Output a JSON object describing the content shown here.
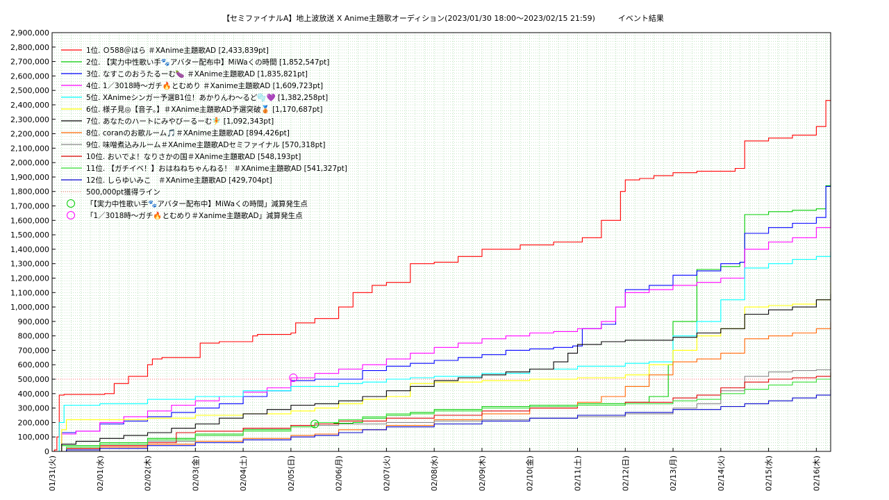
{
  "chart_data": {
    "type": "line",
    "title": "【セミファイナルA】地上波放送 X Anime主題歌オーディション(2023/01/30 18:00～2023/02/15 21:59)　　　イベント結果",
    "x_categories": [
      "01/31(火)",
      "02/01(水)",
      "02/02(木)",
      "02/03(金)",
      "02/04(土)",
      "02/05(日)",
      "02/06(月)",
      "02/07(火)",
      "02/08(水)",
      "02/09(木)",
      "02/10(金)",
      "02/11(土)",
      "02/12(日)",
      "02/13(月)",
      "02/14(火)",
      "02/15(水)",
      "02/16(木)"
    ],
    "xlim": [
      0,
      16.3
    ],
    "ylim": [
      0,
      2900000
    ],
    "yticks": [
      "0",
      "100,000",
      "200,000",
      "300,000",
      "400,000",
      "500,000",
      "600,000",
      "700,000",
      "800,000",
      "900,000",
      "1,000,000",
      "1,100,000",
      "1,200,000",
      "1,300,000",
      "1,400,000",
      "1,500,000",
      "1,600,000",
      "1,700,000",
      "1,800,000",
      "1,900,000",
      "2,000,000",
      "2,100,000",
      "2,200,000",
      "2,300,000",
      "2,400,000",
      "2,500,000",
      "2,600,000",
      "2,700,000",
      "2,800,000",
      "2,900,000"
    ],
    "grid": true,
    "legend_position": "top-left",
    "series": [
      {
        "name": "1位. Ｏ588＠はら ＃XAnime主題歌AD [2,433,839pt]",
        "color": "#ff0000",
        "x": [
          0,
          0.05,
          0.1,
          0.15,
          0.25,
          1.1,
          1.3,
          1.6,
          2.0,
          2.1,
          2.3,
          3.0,
          3.1,
          3.5,
          4.2,
          4.3,
          5.0,
          5.1,
          5.5,
          6.0,
          6.3,
          6.7,
          7.0,
          7.5,
          8.0,
          8.5,
          9.0,
          9.8,
          10.5,
          11.1,
          11.5,
          11.9,
          12.0,
          12.3,
          12.6,
          13.0,
          13.5,
          14.3,
          14.5,
          15.0,
          15.5,
          16.0,
          16.2,
          16.3
        ],
        "y": [
          0,
          10000,
          100000,
          390000,
          395000,
          400000,
          470000,
          520000,
          600000,
          640000,
          650000,
          650000,
          750000,
          760000,
          800000,
          810000,
          820000,
          890000,
          920000,
          1000000,
          1100000,
          1150000,
          1170000,
          1300000,
          1310000,
          1350000,
          1400000,
          1430000,
          1450000,
          1480000,
          1600000,
          1800000,
          1880000,
          1890000,
          1910000,
          1930000,
          1940000,
          1960000,
          2150000,
          2170000,
          2190000,
          2250000,
          2430000,
          2433839
        ]
      },
      {
        "name": "2位. 【実力中性歌い手🐾アバター配布中】MiWaくの時間 [1,852,547pt]",
        "color": "#00cc00",
        "x": [
          0,
          0.2,
          1.0,
          2.0,
          3.0,
          4.0,
          5.0,
          5.5,
          5.9,
          6.3,
          6.5,
          7.0,
          7.5,
          8.0,
          9.0,
          10.0,
          11.0,
          12.0,
          12.5,
          12.9,
          13.0,
          13.5,
          14.0,
          14.4,
          14.5,
          15.0,
          15.5,
          16.0,
          16.2,
          16.3
        ],
        "y": [
          0,
          40000,
          60000,
          90000,
          120000,
          150000,
          180000,
          190000,
          195000,
          200000,
          230000,
          250000,
          270000,
          290000,
          310000,
          320000,
          330000,
          340000,
          380000,
          600000,
          900000,
          1260000,
          1280000,
          1310000,
          1640000,
          1660000,
          1670000,
          1680000,
          1840000,
          1852547
        ]
      },
      {
        "name": "3位. なすこのおうたるーむ🍆 ＃XAnime主題歌AD [1,835,821pt]",
        "color": "#0000ff",
        "x": [
          0,
          0.2,
          0.5,
          1.0,
          1.5,
          2.0,
          2.5,
          3.0,
          3.5,
          4.0,
          4.5,
          5.0,
          5.5,
          6.0,
          6.5,
          7.0,
          7.5,
          8.0,
          8.5,
          9.0,
          9.5,
          10.0,
          10.5,
          10.9,
          11.1,
          11.5,
          11.8,
          12.0,
          12.5,
          13.0,
          13.5,
          14.0,
          14.4,
          14.5,
          15.0,
          15.5,
          16.0,
          16.2,
          16.3
        ],
        "y": [
          0,
          130000,
          140000,
          190000,
          210000,
          240000,
          270000,
          300000,
          330000,
          380000,
          420000,
          490000,
          500000,
          500000,
          560000,
          590000,
          610000,
          630000,
          650000,
          670000,
          700000,
          710000,
          720000,
          730000,
          850000,
          880000,
          1000000,
          1120000,
          1150000,
          1220000,
          1250000,
          1300000,
          1310000,
          1510000,
          1550000,
          1580000,
          1620000,
          1835000,
          1835821
        ]
      },
      {
        "name": "4位. 1／3018時～ガチ🔥とむめり ＃Xanime主題歌AD [1,609,723pt]",
        "color": "#ff00ff",
        "x": [
          0,
          0.2,
          0.5,
          1.0,
          1.5,
          2.0,
          2.5,
          3.0,
          3.5,
          4.0,
          4.5,
          5.0,
          5.5,
          6.0,
          6.5,
          7.0,
          7.5,
          8.0,
          8.5,
          9.0,
          9.5,
          10.0,
          10.5,
          11.0,
          11.5,
          11.8,
          12.0,
          12.5,
          13.0,
          13.5,
          14.0,
          14.5,
          15.0,
          15.5,
          16.0,
          16.3
        ],
        "y": [
          0,
          120000,
          140000,
          200000,
          240000,
          280000,
          320000,
          350000,
          380000,
          410000,
          440000,
          510000,
          540000,
          570000,
          600000,
          640000,
          680000,
          720000,
          750000,
          780000,
          800000,
          820000,
          830000,
          850000,
          900000,
          1000000,
          1100000,
          1120000,
          1150000,
          1170000,
          1200000,
          1400000,
          1450000,
          1480000,
          1550000,
          1609723
        ]
      },
      {
        "name": "5位. XAnimeシンガー予選B1位！あかりんわ～るど🫧💜 [1,382,258pt]",
        "color": "#00ffff",
        "x": [
          0,
          0.15,
          0.25,
          1.0,
          2.0,
          3.0,
          4.0,
          5.0,
          6.0,
          6.5,
          7.0,
          7.5,
          8.0,
          9.0,
          10.0,
          11.0,
          12.0,
          12.5,
          13.0,
          13.5,
          14.0,
          14.5,
          15.0,
          15.5,
          16.0,
          16.3
        ],
        "y": [
          0,
          200000,
          320000,
          330000,
          360000,
          380000,
          420000,
          450000,
          470000,
          480000,
          500000,
          510000,
          520000,
          540000,
          570000,
          590000,
          610000,
          620000,
          800000,
          900000,
          1050000,
          1270000,
          1300000,
          1330000,
          1350000,
          1382258
        ]
      },
      {
        "name": "6位. 様子見◎【音子。】＃XAnime主題歌AD予選突破🥉 [1,170,687pt]",
        "color": "#ffff00",
        "x": [
          0,
          0.2,
          0.3,
          1.0,
          2.0,
          3.0,
          4.0,
          5.0,
          5.5,
          6.0,
          6.5,
          7.0,
          7.5,
          8.0,
          9.0,
          10.0,
          11.0,
          12.0,
          12.5,
          13.0,
          13.5,
          14.0,
          14.5,
          15.0,
          15.5,
          16.0,
          16.3
        ],
        "y": [
          0,
          150000,
          220000,
          220000,
          230000,
          250000,
          260000,
          280000,
          300000,
          330000,
          360000,
          380000,
          470000,
          480000,
          490000,
          500000,
          510000,
          530000,
          600000,
          700000,
          800000,
          850000,
          1000000,
          1010000,
          1020000,
          1050000,
          1170687
        ]
      },
      {
        "name": "7位. あなたのハートにみやびーるーむ🧚 [1,092,343pt]",
        "color": "#000000",
        "x": [
          0,
          0.2,
          0.5,
          1.0,
          1.5,
          2.0,
          2.5,
          3.0,
          3.5,
          4.0,
          4.5,
          5.0,
          5.5,
          6.0,
          6.5,
          7.0,
          7.5,
          8.0,
          8.5,
          9.0,
          9.5,
          10.0,
          10.5,
          10.8,
          11.0,
          11.5,
          12.0,
          12.5,
          13.0,
          13.5,
          14.0,
          14.5,
          15.0,
          15.5,
          16.0,
          16.3
        ],
        "y": [
          0,
          50000,
          70000,
          90000,
          110000,
          130000,
          160000,
          190000,
          230000,
          260000,
          290000,
          320000,
          330000,
          350000,
          380000,
          420000,
          450000,
          490000,
          510000,
          530000,
          550000,
          570000,
          620000,
          680000,
          740000,
          760000,
          770000,
          770000,
          790000,
          820000,
          850000,
          950000,
          980000,
          1000000,
          1050000,
          1092343
        ]
      },
      {
        "name": "8位. coranのお歌ルーム🎵＃XAnime主題歌AD [894,426pt]",
        "color": "#ff6600",
        "x": [
          0,
          0.3,
          1.0,
          2.0,
          3.0,
          4.0,
          5.0,
          5.5,
          6.0,
          7.0,
          8.0,
          9.0,
          10.0,
          11.0,
          11.5,
          12.0,
          12.5,
          13.0,
          13.5,
          14.0,
          14.5,
          15.0,
          15.5,
          16.0,
          16.3
        ],
        "y": [
          0,
          20000,
          30000,
          50000,
          70000,
          90000,
          110000,
          120000,
          150000,
          180000,
          220000,
          260000,
          300000,
          340000,
          380000,
          450000,
          530000,
          620000,
          640000,
          680000,
          780000,
          800000,
          820000,
          850000,
          894426
        ]
      },
      {
        "name": "9位. 味噌煮込みルーム＃XAnime主題歌ADセミファイナル [570,318pt]",
        "color": "#888888",
        "x": [
          0,
          0.3,
          1.0,
          2.0,
          3.0,
          4.0,
          5.0,
          6.0,
          7.0,
          8.0,
          9.0,
          10.0,
          11.0,
          12.0,
          13.0,
          13.5,
          14.0,
          14.5,
          15.0,
          15.5,
          16.0,
          16.3
        ],
        "y": [
          0,
          20000,
          40000,
          70000,
          110000,
          160000,
          180000,
          190000,
          200000,
          210000,
          220000,
          230000,
          240000,
          260000,
          300000,
          330000,
          420000,
          520000,
          550000,
          560000,
          565000,
          570318
        ]
      },
      {
        "name": "10位. おいでよ！なりさかの国＃XAnime主題歌AD [548,193pt]",
        "color": "#dd0000",
        "x": [
          0,
          0.3,
          1.0,
          2.0,
          2.6,
          3.0,
          4.0,
          5.0,
          5.5,
          6.0,
          7.0,
          8.0,
          9.0,
          10.0,
          11.0,
          12.0,
          13.0,
          13.5,
          14.0,
          14.5,
          15.0,
          15.5,
          16.0,
          16.3
        ],
        "y": [
          0,
          20000,
          40000,
          60000,
          130000,
          140000,
          160000,
          180000,
          190000,
          210000,
          230000,
          250000,
          280000,
          300000,
          320000,
          340000,
          370000,
          390000,
          440000,
          480000,
          500000,
          510000,
          520000,
          548193
        ]
      },
      {
        "name": "11位. 【ガチイベ！】おはねねちゃんねる！ ＃XAnime主題歌AD [541,327pt]",
        "color": "#33dd33",
        "x": [
          0,
          0.3,
          1.0,
          2.0,
          3.0,
          4.0,
          5.0,
          5.5,
          6.0,
          6.5,
          7.0,
          8.0,
          9.0,
          10.0,
          11.0,
          12.0,
          13.0,
          13.5,
          14.0,
          14.5,
          15.0,
          15.5,
          16.0,
          16.3
        ],
        "y": [
          0,
          30000,
          50000,
          80000,
          110000,
          140000,
          170000,
          200000,
          220000,
          240000,
          260000,
          280000,
          300000,
          310000,
          320000,
          330000,
          350000,
          360000,
          400000,
          430000,
          460000,
          480000,
          500000,
          541327
        ]
      },
      {
        "name": "12位. しらゆいみこ　＃XAnime主題歌AD [429,704pt]",
        "color": "#0000cc",
        "x": [
          0,
          0.3,
          1.0,
          2.0,
          3.0,
          4.0,
          5.0,
          5.5,
          6.0,
          6.5,
          7.0,
          8.0,
          9.0,
          10.0,
          11.0,
          12.0,
          13.0,
          14.0,
          14.5,
          15.0,
          15.5,
          16.0,
          16.3
        ],
        "y": [
          0,
          10000,
          20000,
          40000,
          60000,
          80000,
          100000,
          110000,
          130000,
          150000,
          170000,
          190000,
          210000,
          230000,
          250000,
          270000,
          290000,
          310000,
          330000,
          350000,
          370000,
          390000,
          429704
        ]
      }
    ],
    "reference_line": {
      "name": "500,000pt獲得ライン",
      "value": 500000,
      "color": "#ff6666"
    },
    "markers": [
      {
        "name": "「【実力中性歌い手🐾アバター配布中】MiWaくの時間」減算発生点",
        "color": "#00cc00",
        "x": 5.5,
        "y": 190000
      },
      {
        "name": "「1／3018時～ガチ🔥とむめり＃Xanime主題歌AD」減算発生点",
        "color": "#ff00ff",
        "x": 5.05,
        "y": 510000
      }
    ]
  }
}
